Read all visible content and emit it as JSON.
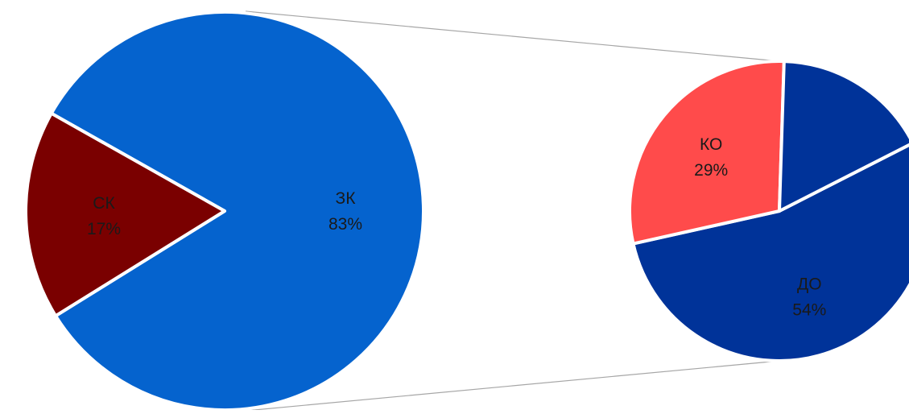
{
  "chart_data": {
    "type": "pie",
    "variant": "pie-of-pie",
    "main_pie": {
      "slices": [
        {
          "name": "ЗК",
          "value": 83,
          "label": "83%",
          "color": "#0563CE"
        },
        {
          "name": "СК",
          "value": 17,
          "label": "17%",
          "color": "#7A0000"
        }
      ]
    },
    "secondary_pie": {
      "source_slice": "ЗК",
      "slices": [
        {
          "name": "ДО",
          "value": 54,
          "label": "54%",
          "color": "#003399"
        },
        {
          "name": "КО",
          "value": 29,
          "label": "29%",
          "color": "#FF4B4B"
        },
        {
          "name": "",
          "value": 17,
          "label": "",
          "color": "#003399"
        }
      ]
    },
    "legend": "none",
    "grid": false
  }
}
